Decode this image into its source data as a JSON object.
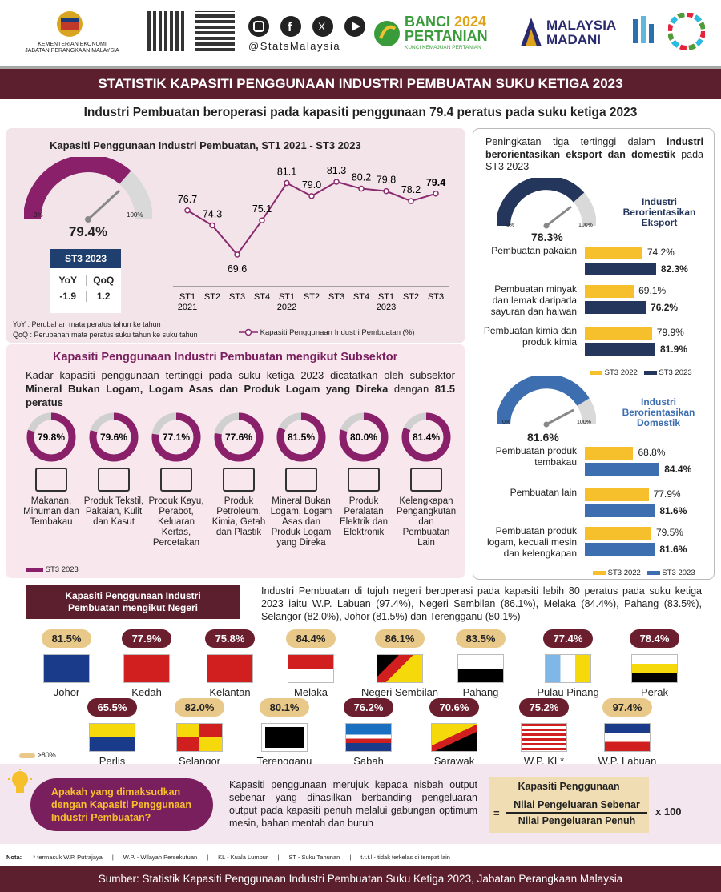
{
  "header": {
    "ministry_line1": "KEMENTERIAN EKONOMI",
    "ministry_line2": "JABATAN PERANGKAAN MALAYSIA",
    "social_handle": "@StatsMalaysia",
    "banci_line1": "BANCI",
    "banci_year": "2024",
    "banci_line2": "PERTANIAN",
    "banci_tagline": "KUNCI KEMAJUAN PERTANIAN",
    "madani_line1": "MALAYSIA",
    "madani_line2": "MADANI"
  },
  "title": "STATISTIK KAPASITI PENGGUNAAN INDUSTRI PEMBUATAN SUKU KETIGA 2023",
  "subtitle": "Industri Pembuatan beroperasi pada kapasiti penggunaan 79.4 peratus pada suku ketiga 2023",
  "trend": {
    "title": "Kapasiti Penggunaan Industri Pembuatan, ST1 2021 - ST3 2023",
    "gauge_value": "79.4%",
    "gauge_min": "0%",
    "gauge_max": "100%",
    "table_header": "ST3 2023",
    "yoy_label": "YoY",
    "qoq_label": "QoQ",
    "yoy_value": "-1.9",
    "qoq_value": "1.2",
    "note_yoy": "YoY : Perubahan mata peratus tahun ke tahun",
    "note_qoq": "QoQ : Perubahan mata peratus suku tahun ke suku tahun",
    "legend": "Kapasiti Penggunaan Industri Pembuatan (%)"
  },
  "chart_data": {
    "type": "line",
    "x": [
      "ST1 2021",
      "ST2 2021",
      "ST3 2021",
      "ST4 2021",
      "ST1 2022",
      "ST2 2022",
      "ST3 2022",
      "ST4 2022",
      "ST1 2023",
      "ST2 2023",
      "ST3 2023"
    ],
    "tick_quarters": [
      "ST1",
      "ST2",
      "ST3",
      "ST4",
      "ST1",
      "ST2",
      "ST3",
      "ST4",
      "ST1",
      "ST2",
      "ST3"
    ],
    "tick_years": [
      "2021",
      "",
      "",
      "",
      "2022",
      "",
      "",
      "",
      "2023",
      "",
      ""
    ],
    "values": [
      76.7,
      74.3,
      69.6,
      75.1,
      81.1,
      79.0,
      81.3,
      80.2,
      79.8,
      78.2,
      79.4
    ],
    "labels": [
      "76.7",
      "74.3",
      "69.6",
      "75.1",
      "81.1",
      "79.0",
      "81.3",
      "80.2",
      "79.8",
      "78.2",
      "79.4"
    ],
    "color": "#8a2a6e"
  },
  "subsector": {
    "title": "Kapasiti Penggunaan Industri Pembuatan mengikut Subsektor",
    "desc_plain": "Kadar kapasiti penggunaan tertinggi pada suku ketiga 2023 dicatatkan oleh subsektor ",
    "desc_bold": "Mineral Bukan Logam, Logam Asas dan Produk Logam yang Direka",
    "desc_tail": " dengan ",
    "desc_value": "81.5 peratus",
    "legend": "ST3 2023",
    "items": [
      {
        "value": "79.8%",
        "pct": 79.8,
        "label": "Makanan, Minuman dan Tembakau",
        "icon": "food-icon"
      },
      {
        "value": "79.6%",
        "pct": 79.6,
        "label": "Produk Tekstil, Pakaian, Kulit dan Kasut",
        "icon": "shirt-icon"
      },
      {
        "value": "77.1%",
        "pct": 77.1,
        "label": "Produk Kayu, Perabot, Keluaran Kertas, Percetakan",
        "icon": "furniture-icon"
      },
      {
        "value": "77.6%",
        "pct": 77.6,
        "label": "Produk Petroleum, Kimia, Getah dan Plastik",
        "icon": "refinery-icon"
      },
      {
        "value": "81.5%",
        "pct": 81.5,
        "label": "Mineral Bukan Logam, Logam Asas dan Produk Logam yang Direka",
        "icon": "metal-icon"
      },
      {
        "value": "80.0%",
        "pct": 80.0,
        "label": "Produk Peralatan Elektrik dan Elektronik",
        "icon": "electronics-icon"
      },
      {
        "value": "81.4%",
        "pct": 81.4,
        "label": "Kelengkapan Pengangkutan dan Pembuatan Lain",
        "icon": "car-icon"
      }
    ]
  },
  "right": {
    "intro_plain": "Peningkatan tiga tertinggi dalam ",
    "intro_bold": "industri berorientasikan eksport dan domestik",
    "intro_tail": " pada ST3 2023",
    "export_title": "Industri Berorientasikan Eksport",
    "export_gauge": "78.3%",
    "domestic_title": "Industri Berorientasikan Domestik",
    "domestic_gauge": "81.6%",
    "gauge_min": "0%",
    "gauge_max": "100%",
    "legend_2022": "ST3 2022",
    "legend_2023": "ST3 2023",
    "export_bars": [
      {
        "label": "Pembuatan pakaian",
        "v2022": 74.2,
        "v2023": 82.3,
        "t2022": "74.2%",
        "t2023": "82.3%"
      },
      {
        "label": "Pembuatan minyak dan lemak daripada sayuran dan haiwan",
        "v2022": 69.1,
        "v2023": 76.2,
        "t2022": "69.1%",
        "t2023": "76.2%"
      },
      {
        "label": "Pembuatan kimia dan produk kimia",
        "v2022": 79.9,
        "v2023": 81.9,
        "t2022": "79.9%",
        "t2023": "81.9%"
      }
    ],
    "domestic_bars": [
      {
        "label": "Pembuatan produk tembakau",
        "v2022": 68.8,
        "v2023": 84.4,
        "t2022": "68.8%",
        "t2023": "84.4%"
      },
      {
        "label": "Pembuatan lain",
        "v2022": 77.9,
        "v2023": 81.6,
        "t2022": "77.9%",
        "t2023": "81.6%"
      },
      {
        "label": "Pembuatan produk logam, kecuali mesin dan kelengkapan",
        "v2022": 79.5,
        "v2023": 81.6,
        "t2022": "79.5%",
        "t2023": "81.6%"
      }
    ]
  },
  "states": {
    "title": "Kapasiti Penggunaan Industri Pembuatan mengikut Negeri",
    "summary": "Industri Pembuatan di tujuh negeri beroperasi pada kapasiti lebih 80 peratus pada suku ketiga 2023 iaitu W.P. Labuan (97.4%), Negeri Sembilan (86.1%), Melaka (84.4%), Pahang (83.5%), Selangor (82.0%), Johor (81.5%) dan Terengganu (80.1%)",
    "legend": ">80%",
    "row1": [
      {
        "name": "Johor",
        "value": "81.5%",
        "hi": true
      },
      {
        "name": "Kedah",
        "value": "77.9%",
        "hi": false
      },
      {
        "name": "Kelantan",
        "value": "75.8%",
        "hi": false
      },
      {
        "name": "Melaka",
        "value": "84.4%",
        "hi": true
      },
      {
        "name": "Negeri Sembilan",
        "value": "86.1%",
        "hi": true
      },
      {
        "name": "Pahang",
        "value": "83.5%",
        "hi": true
      },
      {
        "name": "Pulau Pinang",
        "value": "77.4%",
        "hi": false
      },
      {
        "name": "Perak",
        "value": "78.4%",
        "hi": false
      }
    ],
    "row2": [
      {
        "name": "Perlis",
        "value": "65.5%",
        "hi": false
      },
      {
        "name": "Selangor",
        "value": "82.0%",
        "hi": true
      },
      {
        "name": "Terengganu",
        "value": "80.1%",
        "hi": true
      },
      {
        "name": "Sabah",
        "value": "76.2%",
        "hi": false
      },
      {
        "name": "Sarawak",
        "value": "70.6%",
        "hi": false
      },
      {
        "name": "W.P. KL*",
        "value": "75.2%",
        "hi": false
      },
      {
        "name": "W.P. Labuan",
        "value": "97.4%",
        "hi": true
      }
    ]
  },
  "definition": {
    "question": "Apakah yang dimaksudkan dengan Kapasiti Penggunaan Industri Pembuatan?",
    "answer": "Kapasiti penggunaan merujuk kepada nisbah output sebenar yang dihasilkan berbanding pengeluaran output pada kapasiti penuh melalui gabungan optimum mesin, bahan mentah dan buruh",
    "formula_title": "Kapasiti Penggunaan",
    "numerator": "Nilai Pengeluaran Sebenar",
    "denominator": "Nilai Pengeluaran Penuh",
    "equals": "=",
    "multiplier": "x 100"
  },
  "notes": {
    "label": "Nota:",
    "items": [
      "* termasuk W.P. Putrajaya",
      "|",
      "W.P. - Wilayah Persekutuan",
      "|",
      "KL - Kuala Lumpur",
      "|",
      "ST - Suku Tahunan",
      "|",
      "t.t.t.l - tidak terkelas di tempat lain"
    ]
  },
  "footer": "Sumber: Statistik Kapasiti Penggunaan Industri Pembuatan Suku Ketiga 2023, Jabatan Perangkaan Malaysia"
}
